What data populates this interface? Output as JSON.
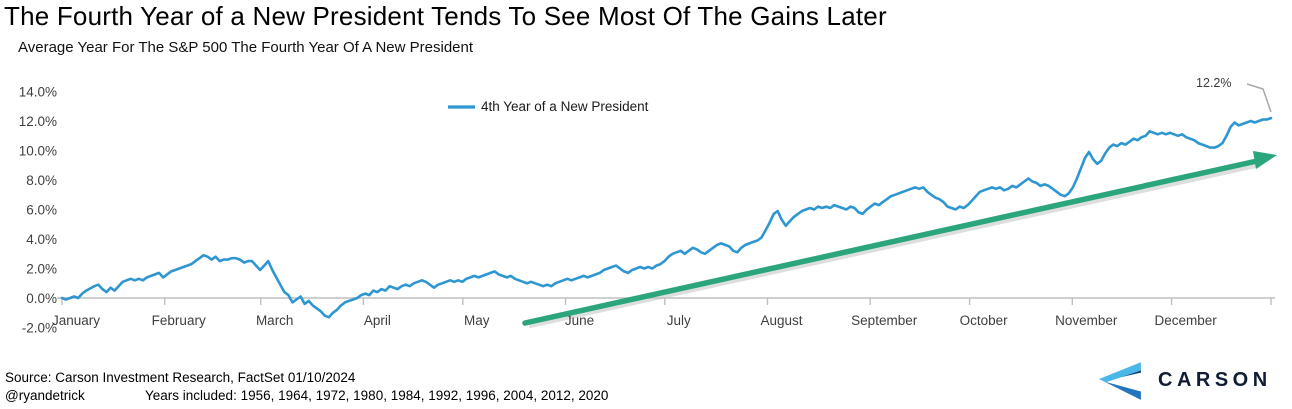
{
  "chart_data": {
    "type": "line",
    "title": "The Fourth Year of a New President Tends To See Most Of The Gains Later",
    "subtitle": "Average Year For The S&P 500 The Fourth Year Of A New President",
    "legend": {
      "label": "4th Year of a New President",
      "position": "top-center"
    },
    "x_axis": {
      "months": [
        "January",
        "February",
        "March",
        "April",
        "May",
        "June",
        "July",
        "August",
        "September",
        "October",
        "November",
        "December"
      ],
      "range": "Jan 1 - Dec 31"
    },
    "y_axis": {
      "unit": "%",
      "ylim": [
        -2,
        14
      ],
      "tick_values": [
        14,
        12,
        10,
        8,
        6,
        4,
        2,
        0,
        -2
      ],
      "tick_labels": [
        "14.0%",
        "12.0%",
        "10.0%",
        "8.0%",
        "6.0%",
        "4.0%",
        "2.0%",
        "0.0%",
        "-2.0%"
      ]
    },
    "grid": "none",
    "annotation": {
      "label": "12.2%",
      "value": 12.2,
      "at": "end-of-series"
    },
    "trend_arrow": {
      "from_month": "June",
      "to_month": "December",
      "direction": "up-right"
    },
    "colors": {
      "line": "#2e96d1",
      "trend_arrow": "#2aa57c",
      "axis": "#bfbfbf",
      "callout": "#a8a8a8",
      "tick_text": "#3f3f3f"
    },
    "series": [
      {
        "name": "4th Year of a New President",
        "color": "#2e96d1",
        "values": [
          0.0,
          -0.1,
          0.0,
          0.1,
          0.0,
          0.3,
          0.5,
          0.65,
          0.8,
          0.9,
          0.6,
          0.4,
          0.7,
          0.5,
          0.8,
          1.1,
          1.2,
          1.3,
          1.2,
          1.3,
          1.2,
          1.4,
          1.5,
          1.6,
          1.7,
          1.4,
          1.6,
          1.8,
          1.9,
          2.0,
          2.1,
          2.2,
          2.3,
          2.5,
          2.7,
          2.9,
          2.8,
          2.6,
          2.8,
          2.5,
          2.6,
          2.6,
          2.7,
          2.7,
          2.6,
          2.4,
          2.5,
          2.5,
          2.2,
          1.9,
          2.2,
          2.5,
          1.9,
          1.4,
          0.9,
          0.4,
          0.2,
          -0.3,
          -0.1,
          0.1,
          -0.4,
          -0.2,
          -0.5,
          -0.7,
          -0.9,
          -1.2,
          -1.3,
          -1.0,
          -0.8,
          -0.5,
          -0.3,
          -0.2,
          -0.1,
          0.0,
          0.2,
          0.3,
          0.2,
          0.5,
          0.4,
          0.6,
          0.5,
          0.8,
          0.7,
          0.6,
          0.8,
          0.9,
          0.8,
          1.0,
          1.1,
          1.2,
          1.1,
          0.9,
          0.7,
          0.9,
          1.0,
          1.1,
          1.2,
          1.1,
          1.2,
          1.1,
          1.3,
          1.4,
          1.5,
          1.4,
          1.5,
          1.6,
          1.7,
          1.8,
          1.6,
          1.5,
          1.4,
          1.5,
          1.3,
          1.2,
          1.1,
          1.0,
          1.1,
          1.0,
          0.9,
          0.8,
          0.9,
          0.8,
          1.0,
          1.1,
          1.2,
          1.3,
          1.2,
          1.3,
          1.4,
          1.5,
          1.4,
          1.5,
          1.6,
          1.7,
          1.9,
          2.0,
          2.1,
          2.2,
          2.0,
          1.8,
          1.7,
          1.9,
          2.0,
          2.1,
          2.0,
          2.1,
          2.0,
          2.2,
          2.3,
          2.5,
          2.8,
          3.0,
          3.1,
          3.2,
          3.0,
          3.2,
          3.4,
          3.3,
          3.1,
          3.0,
          3.2,
          3.4,
          3.6,
          3.7,
          3.6,
          3.5,
          3.2,
          3.1,
          3.4,
          3.6,
          3.7,
          3.8,
          3.9,
          4.1,
          4.6,
          5.1,
          5.7,
          5.9,
          5.3,
          4.9,
          5.2,
          5.5,
          5.7,
          5.9,
          6.0,
          6.1,
          6.0,
          6.2,
          6.1,
          6.2,
          6.1,
          6.3,
          6.2,
          6.1,
          6.0,
          6.2,
          6.1,
          5.8,
          5.7,
          6.0,
          6.2,
          6.4,
          6.3,
          6.5,
          6.7,
          6.9,
          7.0,
          7.1,
          7.2,
          7.3,
          7.4,
          7.5,
          7.4,
          7.5,
          7.2,
          7.0,
          6.8,
          6.7,
          6.5,
          6.2,
          6.1,
          6.0,
          6.2,
          6.1,
          6.3,
          6.6,
          6.9,
          7.2,
          7.3,
          7.4,
          7.5,
          7.4,
          7.5,
          7.3,
          7.4,
          7.6,
          7.5,
          7.7,
          7.9,
          8.1,
          7.9,
          7.8,
          7.6,
          7.7,
          7.6,
          7.4,
          7.2,
          7.0,
          6.9,
          7.1,
          7.5,
          8.1,
          8.8,
          9.5,
          9.9,
          9.4,
          9.1,
          9.3,
          9.8,
          10.2,
          10.4,
          10.3,
          10.5,
          10.4,
          10.6,
          10.8,
          10.7,
          10.9,
          11.0,
          11.3,
          11.2,
          11.1,
          11.2,
          11.1,
          11.2,
          11.1,
          11.0,
          11.1,
          10.9,
          10.8,
          10.7,
          10.5,
          10.4,
          10.3,
          10.2,
          10.2,
          10.3,
          10.5,
          11.0,
          11.6,
          11.9,
          11.7,
          11.8,
          11.9,
          12.0,
          11.9,
          12.0,
          12.1,
          12.1,
          12.2
        ]
      }
    ]
  },
  "footer": {
    "source_line": "Source: Carson Investment Research, FactSet 01/10/2024",
    "handle": "@ryandetrick",
    "years_included": "Years included: 1956, 1964, 1972, 1980, 1984, 1992, 1996, 2004, 2012, 2020",
    "brand": {
      "text": "CARSON",
      "navy": "#101d35",
      "light_blue": "#49b7e8",
      "mid_blue": "#2176bd",
      "edge_navy": "#173a66"
    }
  }
}
